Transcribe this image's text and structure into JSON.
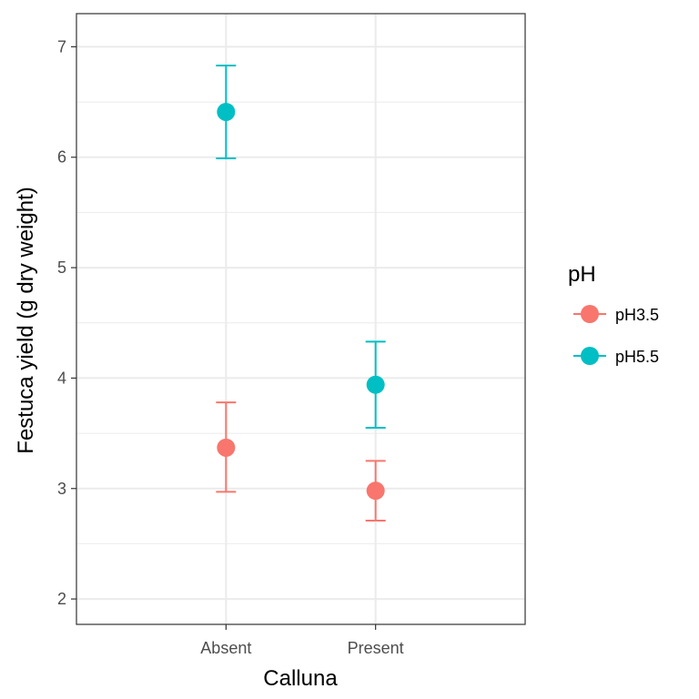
{
  "chart_data": {
    "type": "scatter",
    "xlabel": "Calluna",
    "ylabel": "Festuca yield (g dry weight)",
    "categories": [
      "Absent",
      "Present"
    ],
    "ylim": [
      1.77,
      7.3
    ],
    "yticks": [
      "2",
      "3",
      "4",
      "5",
      "6",
      "7"
    ],
    "grid": true,
    "legend": {
      "title": "pH",
      "position": "right"
    },
    "series": [
      {
        "name": "pH3.5",
        "color": "#F8766D",
        "values": [
          3.37,
          2.98
        ],
        "lower": [
          2.97,
          2.71
        ],
        "upper": [
          3.78,
          3.25
        ]
      },
      {
        "name": "pH5.5",
        "color": "#00BFC4",
        "values": [
          6.41,
          3.94
        ],
        "lower": [
          5.99,
          3.55
        ],
        "upper": [
          6.83,
          4.33
        ]
      }
    ]
  }
}
